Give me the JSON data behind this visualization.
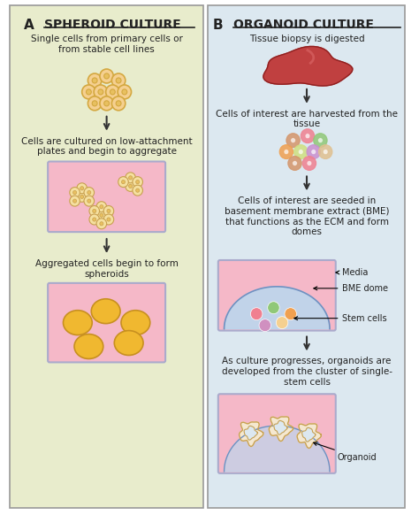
{
  "left_bg": "#e8eccc",
  "right_bg": "#dce8f0",
  "border_color": "#999999",
  "pink_fill": "#f5b8c8",
  "plate_border": "#aaaacc",
  "arrow_color": "#333333",
  "title_left": "SPHEROID CULTURE",
  "title_right": "ORGANOID CULTURE",
  "label_A": "A",
  "label_B": "B",
  "cell_single_fill": "#f5d090",
  "cell_single_stroke": "#d4a840",
  "cell_inner": "#e8c060",
  "aggregate_fill": "#f5e0a0",
  "aggregate_stroke": "#c8a050",
  "spheroid_fill": "#f0b830",
  "spheroid_stroke": "#c89020",
  "organoid_cell_colors": [
    "#d4956a",
    "#f08090",
    "#90c878",
    "#f0a050",
    "#d0e080",
    "#c890d0",
    "#e0c090"
  ],
  "bme_fill": "#b8d8f0",
  "bme_stroke": "#7090c0",
  "stem_colors": [
    "#f08090",
    "#90c878",
    "#f0a050",
    "#d090c0",
    "#f5d090"
  ],
  "organoid_fill": "#f5e8d0",
  "organoid_stroke": "#c8a050",
  "tissue_fill": "#c04040",
  "tissue_stroke": "#902020",
  "text_color": "#222222",
  "underline_color": "#222222"
}
